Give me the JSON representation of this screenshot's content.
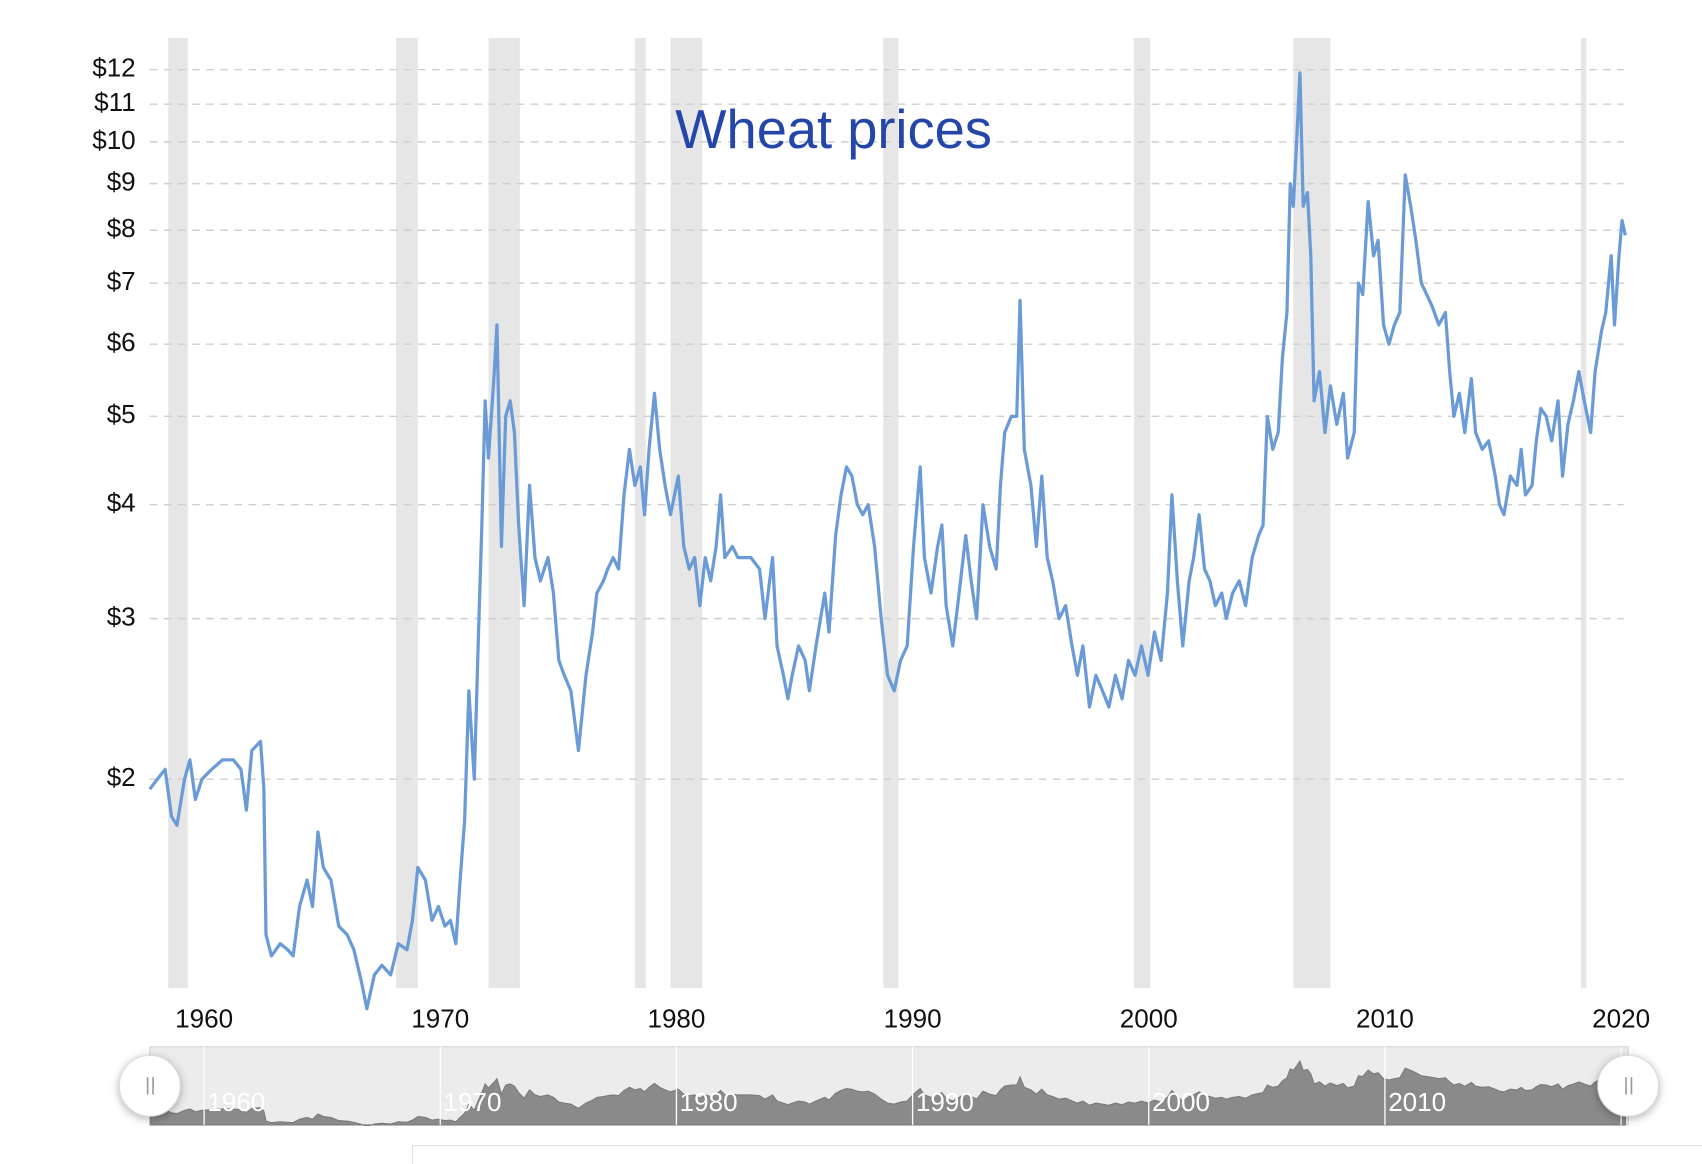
{
  "chart_data": {
    "type": "line",
    "title": "Wheat prices",
    "log_y": true,
    "grid": true,
    "color": "#6b9bd6",
    "xlim": [
      1957.7,
      2020.3
    ],
    "xticks": [
      1960,
      1970,
      1980,
      1990,
      2000,
      2010,
      2020
    ],
    "ylim": [
      1.18,
      13
    ],
    "yticks": [
      {
        "value": 2,
        "label": "$2"
      },
      {
        "value": 3,
        "label": "$3"
      },
      {
        "value": 4,
        "label": "$4"
      },
      {
        "value": 5,
        "label": "$5"
      },
      {
        "value": 6,
        "label": "$6"
      },
      {
        "value": 7,
        "label": "$7"
      },
      {
        "value": 8,
        "label": "$8"
      },
      {
        "value": 9,
        "label": "$9"
      },
      {
        "value": 10,
        "label": "$10"
      },
      {
        "value": 11,
        "label": "$11"
      },
      {
        "value": 12,
        "label": "$12"
      }
    ],
    "recessions": [
      [
        1958.48,
        1959.31
      ],
      [
        1968.13,
        1969.05
      ],
      [
        1972.04,
        1973.37
      ],
      [
        1978.24,
        1978.7
      ],
      [
        1979.75,
        1981.09
      ],
      [
        1988.76,
        1989.4
      ],
      [
        1999.37,
        2000.06
      ],
      [
        2006.12,
        2007.69
      ],
      [
        2018.3,
        2018.53
      ]
    ],
    "x": [
      1957.7,
      1958.02,
      1958.35,
      1958.62,
      1958.85,
      1959.17,
      1959.4,
      1959.63,
      1959.91,
      1960.32,
      1960.78,
      1961.24,
      1961.56,
      1961.79,
      1962.02,
      1962.39,
      1962.53,
      1962.62,
      1962.85,
      1963.22,
      1963.54,
      1963.77,
      1964.04,
      1964.36,
      1964.59,
      1964.82,
      1965.05,
      1965.37,
      1965.7,
      1966.06,
      1966.34,
      1966.66,
      1966.89,
      1967.21,
      1967.53,
      1967.9,
      1968.22,
      1968.59,
      1968.82,
      1969.05,
      1969.37,
      1969.65,
      1969.92,
      1970.2,
      1970.43,
      1970.66,
      1970.84,
      1971.03,
      1971.21,
      1971.44,
      1971.62,
      1971.76,
      1971.9,
      1972.04,
      1972.27,
      1972.4,
      1972.59,
      1972.77,
      1972.96,
      1973.14,
      1973.32,
      1973.55,
      1973.78,
      1974.01,
      1974.24,
      1974.56,
      1974.79,
      1975.02,
      1975.25,
      1975.53,
      1975.85,
      1976.17,
      1976.45,
      1976.63,
      1976.91,
      1977.09,
      1977.32,
      1977.55,
      1977.78,
      1978.01,
      1978.24,
      1978.47,
      1978.65,
      1978.84,
      1979.07,
      1979.29,
      1979.52,
      1979.75,
      1980.08,
      1980.31,
      1980.54,
      1980.77,
      1980.99,
      1981.22,
      1981.45,
      1981.68,
      1981.87,
      1982.05,
      1982.37,
      1982.6,
      1982.83,
      1983.15,
      1983.52,
      1983.75,
      1984.07,
      1984.26,
      1984.53,
      1984.72,
      1984.9,
      1985.17,
      1985.45,
      1985.63,
      1985.91,
      1986.28,
      1986.46,
      1986.74,
      1986.97,
      1987.2,
      1987.43,
      1987.66,
      1987.89,
      1988.12,
      1988.39,
      1988.67,
      1988.94,
      1989.22,
      1989.49,
      1989.77,
      1990.04,
      1990.32,
      1990.5,
      1990.78,
      1991.06,
      1991.24,
      1991.42,
      1991.7,
      1991.97,
      1992.25,
      1992.48,
      1992.71,
      1992.98,
      1993.26,
      1993.54,
      1993.72,
      1993.9,
      1994.18,
      1994.41,
      1994.55,
      1994.73,
      1995.01,
      1995.24,
      1995.47,
      1995.7,
      1995.93,
      1996.2,
      1996.48,
      1996.75,
      1996.98,
      1997.21,
      1997.49,
      1997.76,
      1998.04,
      1998.31,
      1998.59,
      1998.87,
      1999.14,
      1999.42,
      1999.69,
      1999.97,
      2000.24,
      2000.52,
      2000.79,
      2000.98,
      2001.21,
      2001.44,
      2001.71,
      2001.9,
      2002.13,
      2002.36,
      2002.59,
      2002.82,
      2003.09,
      2003.28,
      2003.55,
      2003.83,
      2004.1,
      2004.38,
      2004.65,
      2004.84,
      2005.02,
      2005.25,
      2005.48,
      2005.66,
      2005.85,
      2005.99,
      2006.12,
      2006.26,
      2006.4,
      2006.54,
      2006.72,
      2006.86,
      2007.0,
      2007.23,
      2007.46,
      2007.69,
      2007.96,
      2008.24,
      2008.42,
      2008.7,
      2008.88,
      2009.06,
      2009.29,
      2009.52,
      2009.71,
      2009.94,
      2010.17,
      2010.4,
      2010.63,
      2010.86,
      2011.09,
      2011.31,
      2011.54,
      2011.77,
      2012.0,
      2012.28,
      2012.56,
      2012.74,
      2012.92,
      2013.15,
      2013.38,
      2013.66,
      2013.84,
      2014.12,
      2014.39,
      2014.67,
      2014.85,
      2015.04,
      2015.31,
      2015.59,
      2015.77,
      2015.95,
      2016.23,
      2016.41,
      2016.6,
      2016.83,
      2017.06,
      2017.33,
      2017.52,
      2017.75,
      2017.98,
      2018.21,
      2018.44,
      2018.71,
      2018.9,
      2019.17,
      2019.35,
      2019.58,
      2019.72,
      2019.91,
      2020.04,
      2020.18
    ],
    "values": [
      1.95,
      2.0,
      2.05,
      1.82,
      1.78,
      2.0,
      2.1,
      1.9,
      2.0,
      2.05,
      2.1,
      2.1,
      2.05,
      1.85,
      2.15,
      2.2,
      1.95,
      1.35,
      1.28,
      1.32,
      1.3,
      1.28,
      1.45,
      1.55,
      1.45,
      1.75,
      1.6,
      1.55,
      1.38,
      1.35,
      1.3,
      1.2,
      1.12,
      1.22,
      1.25,
      1.22,
      1.32,
      1.3,
      1.4,
      1.6,
      1.55,
      1.4,
      1.45,
      1.38,
      1.4,
      1.32,
      1.55,
      1.8,
      2.5,
      2.0,
      2.9,
      3.8,
      5.2,
      4.5,
      5.5,
      6.3,
      3.6,
      5.0,
      5.2,
      4.8,
      3.8,
      3.1,
      4.2,
      3.5,
      3.3,
      3.5,
      3.2,
      2.7,
      2.6,
      2.5,
      2.15,
      2.6,
      2.9,
      3.2,
      3.3,
      3.4,
      3.5,
      3.4,
      4.1,
      4.6,
      4.2,
      4.4,
      3.9,
      4.6,
      5.3,
      4.6,
      4.2,
      3.9,
      4.3,
      3.6,
      3.4,
      3.5,
      3.1,
      3.5,
      3.3,
      3.6,
      4.1,
      3.5,
      3.6,
      3.5,
      3.5,
      3.5,
      3.4,
      3.0,
      3.5,
      2.8,
      2.6,
      2.45,
      2.6,
      2.8,
      2.7,
      2.5,
      2.8,
      3.2,
      2.9,
      3.7,
      4.1,
      4.4,
      4.3,
      4.0,
      3.9,
      4.0,
      3.6,
      3.0,
      2.6,
      2.5,
      2.7,
      2.8,
      3.6,
      4.4,
      3.5,
      3.2,
      3.6,
      3.8,
      3.1,
      2.8,
      3.2,
      3.7,
      3.3,
      3.0,
      4.0,
      3.6,
      3.4,
      4.2,
      4.8,
      5.0,
      5.0,
      6.7,
      4.6,
      4.2,
      3.6,
      4.3,
      3.5,
      3.3,
      3.0,
      3.1,
      2.8,
      2.6,
      2.8,
      2.4,
      2.6,
      2.5,
      2.4,
      2.6,
      2.45,
      2.7,
      2.6,
      2.8,
      2.6,
      2.9,
      2.7,
      3.2,
      4.1,
      3.3,
      2.8,
      3.3,
      3.5,
      3.9,
      3.4,
      3.3,
      3.1,
      3.2,
      3.0,
      3.2,
      3.3,
      3.1,
      3.5,
      3.7,
      3.8,
      5.0,
      4.6,
      4.8,
      5.8,
      6.5,
      9.0,
      8.5,
      10.0,
      11.9,
      8.5,
      8.8,
      7.5,
      5.2,
      5.6,
      4.8,
      5.4,
      4.9,
      5.3,
      4.5,
      4.8,
      7.0,
      6.8,
      8.6,
      7.5,
      7.8,
      6.3,
      6.0,
      6.3,
      6.5,
      9.2,
      8.5,
      7.8,
      7.0,
      6.8,
      6.6,
      6.3,
      6.5,
      5.6,
      5.0,
      5.3,
      4.8,
      5.5,
      4.8,
      4.6,
      4.7,
      4.3,
      4.0,
      3.9,
      4.3,
      4.2,
      4.6,
      4.1,
      4.2,
      4.7,
      5.1,
      5.0,
      4.7,
      5.2,
      4.3,
      4.9,
      5.2,
      5.6,
      5.2,
      4.8,
      5.6,
      6.2,
      6.5,
      7.5,
      6.3,
      7.5,
      8.2,
      7.9
    ]
  }
}
